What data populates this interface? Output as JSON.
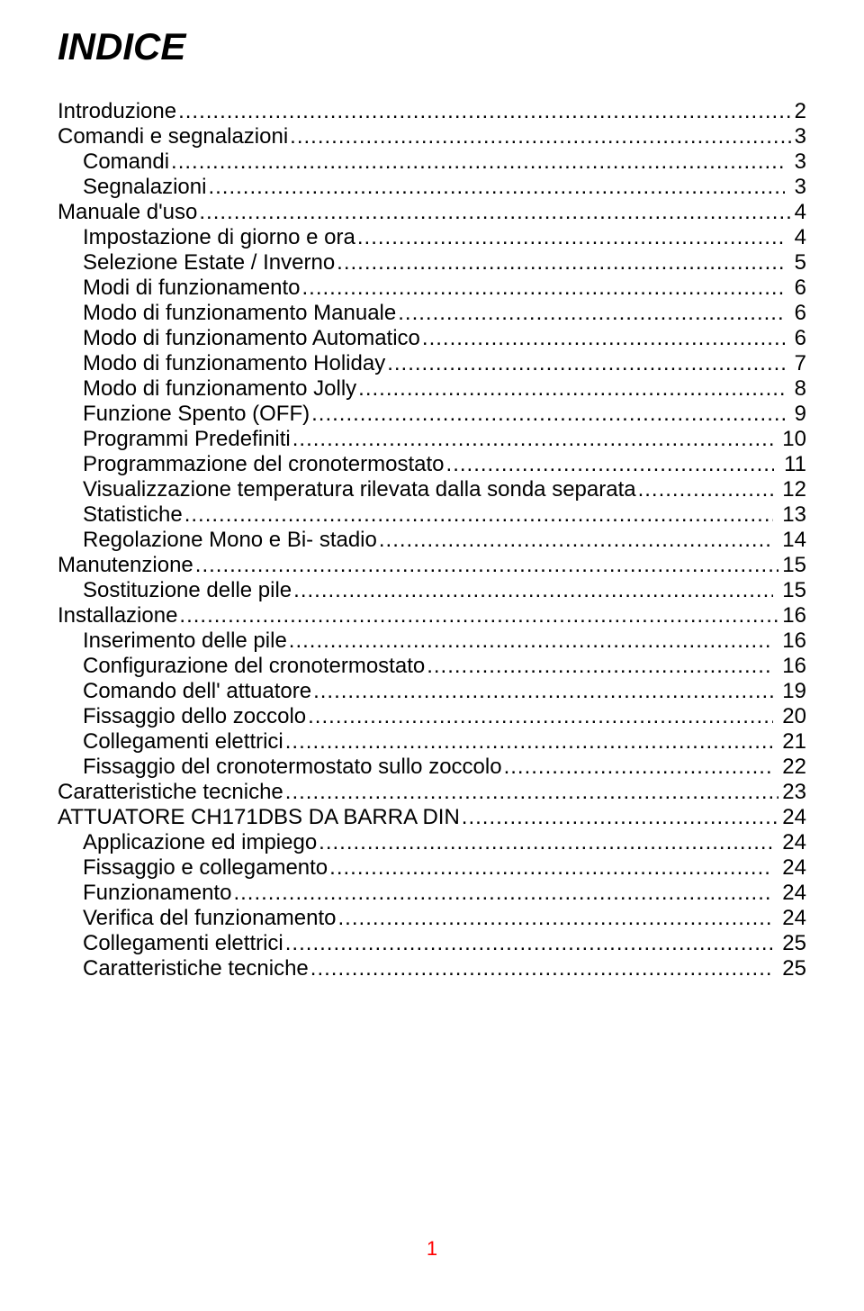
{
  "title": "INDICE",
  "page_number": "1",
  "colors": {
    "text": "#000000",
    "page_number": "#ff0000",
    "background": "#ffffff"
  },
  "typography": {
    "title_fontsize_pt": 32,
    "title_weight": "bold",
    "title_style": "italic",
    "body_fontsize_pt": 18,
    "font_family": "Arial"
  },
  "toc": [
    {
      "label": "Introduzione",
      "page": "2",
      "indent": 0
    },
    {
      "label": "Comandi e segnalazioni",
      "page": "3",
      "indent": 0
    },
    {
      "label": "Comandi",
      "page": " 3",
      "indent": 1
    },
    {
      "label": "Segnalazioni",
      "page": " 3",
      "indent": 1
    },
    {
      "label": "Manuale d'uso",
      "page": "4",
      "indent": 0
    },
    {
      "label": "Impostazione di giorno e ora",
      "page": " 4",
      "indent": 1
    },
    {
      "label": "Selezione Estate / Inverno",
      "page": " 5",
      "indent": 1
    },
    {
      "label": "Modi di funzionamento",
      "page": " 6",
      "indent": 1
    },
    {
      "label": "Modo di funzionamento Manuale",
      "page": " 6",
      "indent": 1
    },
    {
      "label": "Modo di funzionamento Automatico",
      "page": " 6",
      "indent": 1
    },
    {
      "label": "Modo di funzionamento Holiday",
      "page": " 7",
      "indent": 1
    },
    {
      "label": "Modo di funzionamento Jolly",
      "page": " 8",
      "indent": 1
    },
    {
      "label": "Funzione Spento (OFF)",
      "page": " 9",
      "indent": 1
    },
    {
      "label": "Programmi Predefiniti",
      "page": " 10",
      "indent": 1
    },
    {
      "label": "Programmazione del cronotermostato",
      "page": " 11",
      "indent": 1
    },
    {
      "label": "Visualizzazione temperatura rilevata dalla sonda separata",
      "page": " 12",
      "indent": 1
    },
    {
      "label": "Statistiche",
      "page": " 13",
      "indent": 1
    },
    {
      "label": "Regolazione Mono e Bi- stadio",
      "page": " 14",
      "indent": 1
    },
    {
      "label": "Manutenzione",
      "page": "15",
      "indent": 0
    },
    {
      "label": "Sostituzione delle pile",
      "page": " 15",
      "indent": 1
    },
    {
      "label": "Installazione",
      "page": "16",
      "indent": 0
    },
    {
      "label": "Inserimento delle pile",
      "page": " 16",
      "indent": 1
    },
    {
      "label": "Configurazione del cronotermostato",
      "page": " 16",
      "indent": 1
    },
    {
      "label": "Comando dell' attuatore",
      "page": " 19",
      "indent": 1
    },
    {
      "label": "Fissaggio dello zoccolo",
      "page": " 20",
      "indent": 1
    },
    {
      "label": "Collegamenti elettrici",
      "page": " 21",
      "indent": 1
    },
    {
      "label": "Fissaggio del cronotermostato sullo zoccolo",
      "page": " 22",
      "indent": 1
    },
    {
      "label": "Caratteristiche tecniche",
      "page": "23",
      "indent": 0
    },
    {
      "label": "ATTUATORE CH171DBS DA BARRA DIN",
      "page": "24",
      "indent": 0
    },
    {
      "label": "Applicazione ed impiego",
      "page": " 24",
      "indent": 1
    },
    {
      "label": "Fissaggio e collegamento",
      "page": " 24",
      "indent": 1
    },
    {
      "label": "Funzionamento",
      "page": " 24",
      "indent": 1
    },
    {
      "label": "Verifica del funzionamento",
      "page": " 24",
      "indent": 1
    },
    {
      "label": "Collegamenti elettrici",
      "page": " 25",
      "indent": 1
    },
    {
      "label": "Caratteristiche tecniche",
      "page": " 25",
      "indent": 1
    }
  ],
  "leader_char": "."
}
